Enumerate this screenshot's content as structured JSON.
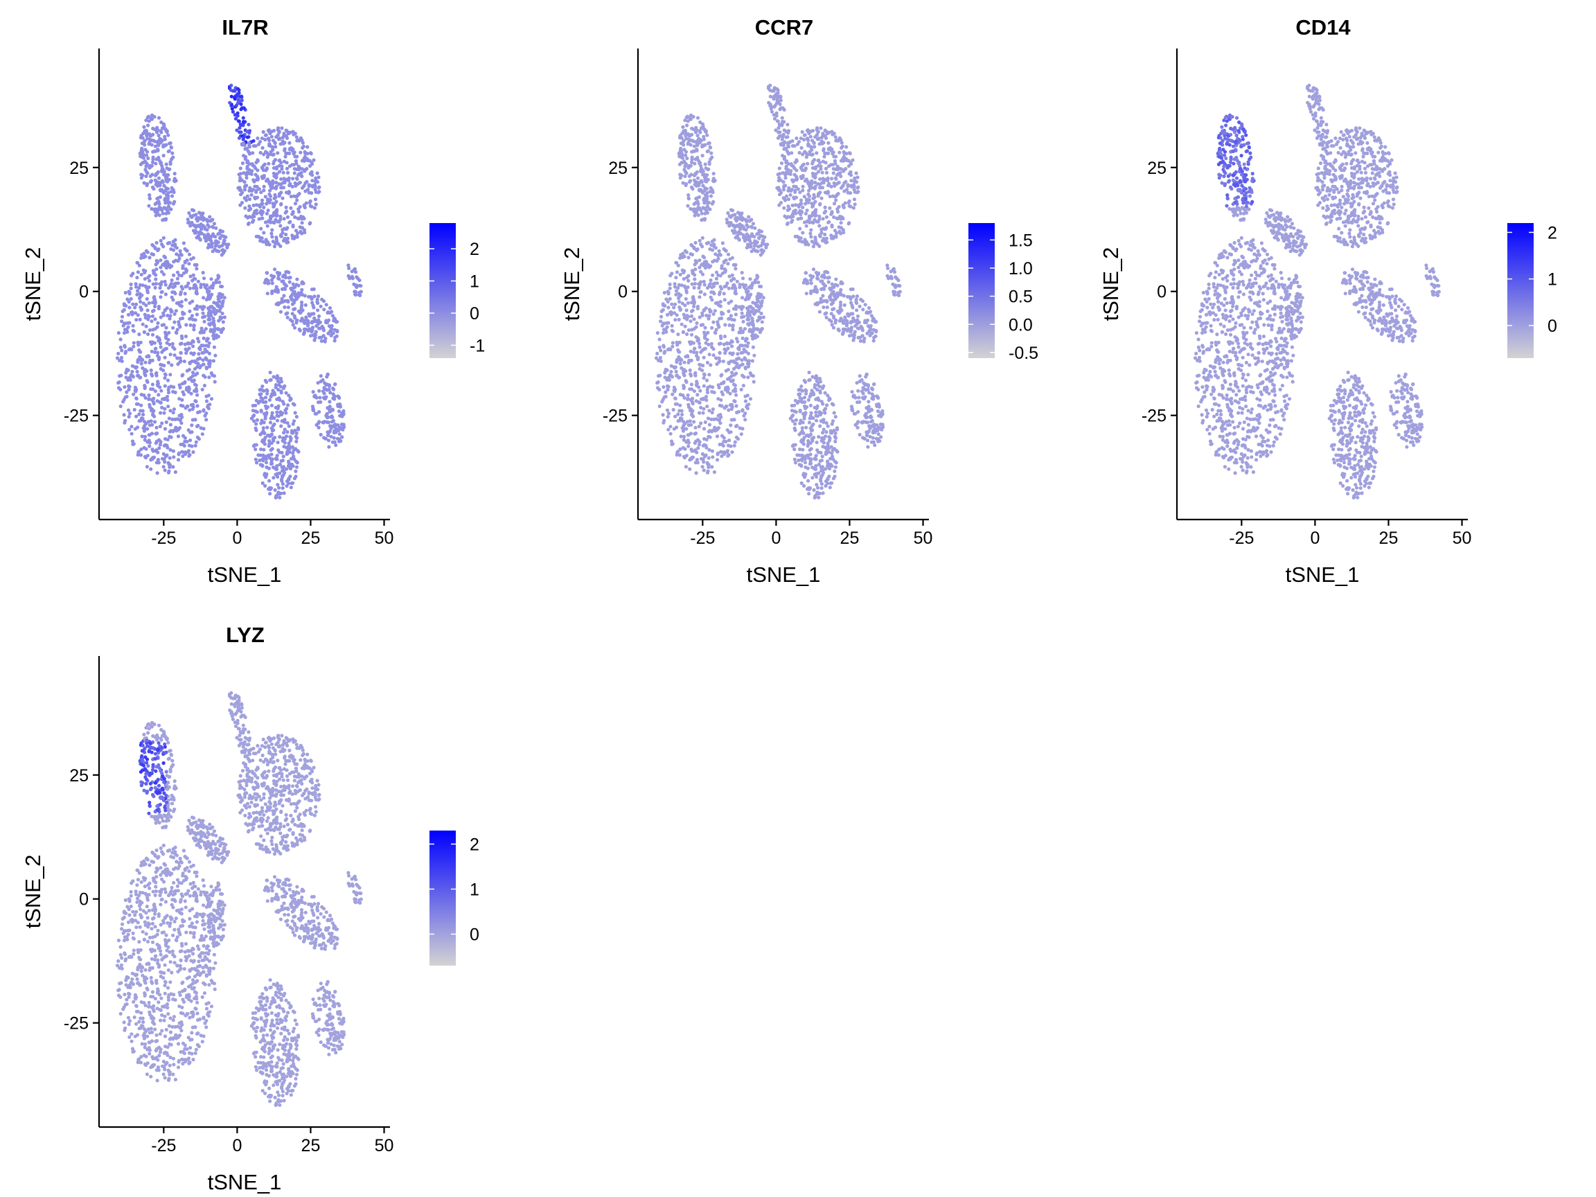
{
  "chart_data": [
    {
      "type": "scatter",
      "title": "IL7R",
      "xlabel": "tSNE_1",
      "ylabel": "tSNE_2",
      "x_ticks": [
        -25,
        0,
        25,
        50
      ],
      "y_ticks": [
        -25,
        0,
        25
      ],
      "xlim": [
        -47,
        52
      ],
      "ylim": [
        -46,
        49
      ],
      "colorbar": {
        "ticks": [
          "2",
          "1",
          "0",
          "-1"
        ],
        "values": [
          2,
          1,
          0,
          -1
        ],
        "range": [
          -1.4,
          2.8
        ],
        "low_color": "#d3d3d3",
        "high_color": "#0000ff"
      },
      "baseline_value": 0,
      "hotspots": [
        {
          "region": "top-narrow-strip",
          "x": [
            -4,
            6
          ],
          "y": [
            30,
            44
          ],
          "level": 0.85
        }
      ]
    },
    {
      "type": "scatter",
      "title": "CCR7",
      "xlabel": "tSNE_1",
      "ylabel": "tSNE_2",
      "x_ticks": [
        -25,
        0,
        25,
        50
      ],
      "y_ticks": [
        -25,
        0,
        25
      ],
      "xlim": [
        -47,
        52
      ],
      "ylim": [
        -46,
        49
      ],
      "colorbar": {
        "ticks": [
          "1.5",
          "1.0",
          "0.5",
          "0.0",
          "-0.5"
        ],
        "values": [
          1.5,
          1.0,
          0.5,
          0.0,
          -0.5
        ],
        "range": [
          -0.6,
          1.8
        ],
        "low_color": "#d3d3d3",
        "high_color": "#0000ff"
      },
      "baseline_value": 0,
      "hotspots": []
    },
    {
      "type": "scatter",
      "title": "CD14",
      "xlabel": "tSNE_1",
      "ylabel": "tSNE_2",
      "x_ticks": [
        -25,
        0,
        25,
        50
      ],
      "y_ticks": [
        -25,
        0,
        25
      ],
      "xlim": [
        -47,
        52
      ],
      "ylim": [
        -46,
        49
      ],
      "colorbar": {
        "ticks": [
          "2",
          "1",
          "0"
        ],
        "values": [
          2,
          1,
          0
        ],
        "range": [
          -0.7,
          2.2
        ],
        "low_color": "#d3d3d3",
        "high_color": "#0000ff"
      },
      "baseline_value": 0,
      "hotspots": [
        {
          "region": "upper-left-cluster",
          "x": [
            -37,
            -18
          ],
          "y": [
            17,
            38
          ],
          "level": 0.6
        }
      ]
    },
    {
      "type": "scatter",
      "title": "LYZ",
      "xlabel": "tSNE_1",
      "ylabel": "tSNE_2",
      "x_ticks": [
        -25,
        0,
        25,
        50
      ],
      "y_ticks": [
        -25,
        0,
        25
      ],
      "xlim": [
        -47,
        52
      ],
      "ylim": [
        -46,
        49
      ],
      "colorbar": {
        "ticks": [
          "2",
          "1",
          "0"
        ],
        "values": [
          2,
          1,
          0
        ],
        "range": [
          -0.7,
          2.3
        ],
        "low_color": "#d3d3d3",
        "high_color": "#0000ff"
      },
      "baseline_value": 0,
      "hotspots": [
        {
          "region": "upper-left-cluster",
          "x": [
            -37,
            -24
          ],
          "y": [
            17,
            32
          ],
          "level": 0.75
        }
      ]
    }
  ]
}
